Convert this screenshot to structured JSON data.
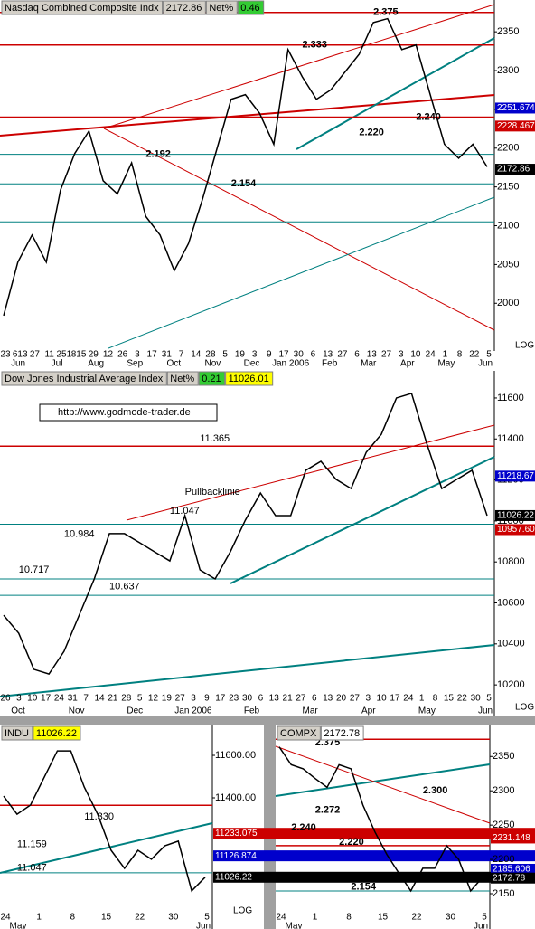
{
  "chart_data": [
    {
      "type": "line",
      "header": [
        "Nasdaq Combined Composite Indx",
        "2172.86",
        "Net%",
        "0.46"
      ],
      "header_colors": [
        "#d4d0c8",
        "#d4d0c8",
        "#d4d0c8",
        "#33cc33"
      ],
      "ylim": [
        1942,
        2391
      ],
      "yticks": [
        2000,
        2050,
        2100,
        2150,
        2200,
        2250,
        2300,
        2350
      ],
      "scale_label": "LOG",
      "color": "#000000",
      "values": [
        1984,
        2053,
        2088,
        2053,
        2146,
        2193,
        2222,
        2158,
        2141,
        2181,
        2112,
        2088,
        2042,
        2077,
        2135,
        2199,
        2263,
        2269,
        2245,
        2205,
        2327,
        2292,
        2263,
        2275,
        2298,
        2321,
        2362,
        2367,
        2327,
        2333,
        2269,
        2205,
        2187,
        2205,
        2176
      ],
      "levels": [
        {
          "value": 2375,
          "color": "#cc0000"
        },
        {
          "value": 2333,
          "color": "#cc0000"
        },
        {
          "value": 2240,
          "color": "#cc0000"
        },
        {
          "value": 2192,
          "color": "#008080"
        },
        {
          "value": 2154,
          "color": "#008080"
        },
        {
          "value": 2105,
          "color": "#008080"
        }
      ],
      "tags": [
        {
          "value": 2251.674,
          "color": "#0000cc"
        },
        {
          "value": 2228.467,
          "color": "#cc0000"
        },
        {
          "value": 2172.86,
          "color": "#000000"
        }
      ],
      "annotations": [
        {
          "text": "2.375",
          "x": 26,
          "y": 2375
        },
        {
          "text": "2.333",
          "x": 21,
          "y": 2333
        },
        {
          "text": "2.192",
          "x": 10,
          "y": 2192
        },
        {
          "text": "2.154",
          "x": 16,
          "y": 2154
        },
        {
          "text": "2.240",
          "x": 29,
          "y": 2240
        },
        {
          "text": "2.220",
          "x": 25,
          "y": 2220
        }
      ],
      "x_tick_labels": [
        "23",
        "613",
        "27",
        "11",
        "251",
        "815",
        "29",
        "12",
        "26",
        "3",
        "17",
        "31",
        "7",
        "14",
        "28",
        "5",
        "19",
        "3",
        "9",
        "17",
        "30",
        "6",
        "13",
        "27",
        "6",
        "13",
        "27",
        "3",
        "10",
        "24",
        "1",
        "8",
        "22",
        "5"
      ],
      "month_labels": [
        "Jun",
        "Jul",
        "Aug",
        "Sep",
        "Oct",
        "Nov",
        "Dec",
        "Jan 2006",
        "Feb",
        "Mar",
        "Apr",
        "May",
        "Jun"
      ]
    },
    {
      "type": "line",
      "header": [
        "Dow Jones Industrial Average Index",
        "Net%",
        "0.21",
        "11026.01"
      ],
      "header_colors": [
        "#d4d0c8",
        "#d4d0c8",
        "#33cc33",
        "#ffff00"
      ],
      "url": "http://www.godmode-trader.de",
      "ylim": [
        10077,
        11666
      ],
      "yticks": [
        10200,
        10400,
        10600,
        10800,
        11000,
        11200,
        11400,
        11600
      ],
      "scale_label": "LOG",
      "color": "#000000",
      "values": [
        10540,
        10452,
        10276,
        10253,
        10364,
        10540,
        10717,
        10938,
        10938,
        10894,
        10849,
        10805,
        11026,
        10761,
        10717,
        10849,
        11004,
        11136,
        11026,
        11026,
        11247,
        11291,
        11203,
        11158,
        11335,
        11423,
        11600,
        11622,
        11379,
        11158,
        11203,
        11247,
        11026
      ],
      "levels": [
        {
          "value": 11365,
          "color": "#cc0000"
        },
        {
          "value": 10984,
          "color": "#008080"
        },
        {
          "value": 10717,
          "color": "#008080"
        },
        {
          "value": 10637,
          "color": "#008080"
        }
      ],
      "tags": [
        {
          "value": 11218.67,
          "color": "#0000cc"
        },
        {
          "value": 11026.22,
          "color": "#000000"
        },
        {
          "value": 10957.6,
          "label": "10957.60",
          "color": "#cc0000"
        }
      ],
      "annotations": [
        {
          "text": "11.365",
          "x": 13,
          "y": 11400
        },
        {
          "text": "Pullbacklinie",
          "x": 12,
          "y": 11140
        },
        {
          "text": "11.047",
          "x": 11,
          "y": 11047
        },
        {
          "text": "10.984",
          "x": 4,
          "y": 10935
        },
        {
          "text": "10.717",
          "x": 1,
          "y": 10760
        },
        {
          "text": "10.637",
          "x": 7,
          "y": 10680
        }
      ],
      "x_tick_labels": [
        "26",
        "3",
        "10",
        "17",
        "24",
        "31",
        "7",
        "14",
        "21",
        "28",
        "5",
        "12",
        "19",
        "27",
        "3",
        "9",
        "17",
        "23",
        "30",
        "6",
        "13",
        "21",
        "27",
        "6",
        "13",
        "20",
        "27",
        "3",
        "10",
        "17",
        "24",
        "1",
        "8",
        "15",
        "22",
        "30",
        "5"
      ],
      "month_labels": [
        "Oct",
        "Nov",
        "Dec",
        "Jan 2006",
        "Feb",
        "Mar",
        "Apr",
        "May",
        "Jun"
      ]
    },
    {
      "type": "line",
      "header": [
        "INDU",
        "11026.22"
      ],
      "header_colors": [
        "#d4d0c8",
        "#ffff00"
      ],
      "ylim": [
        10855,
        11698
      ],
      "yticks": [
        {
          "value": 11400,
          "label": "11400.00"
        },
        {
          "value": 11600,
          "label": "11600.00"
        }
      ],
      "scale_label": "LOG",
      "color": "#000000",
      "values": [
        11408,
        11323,
        11366,
        11494,
        11621,
        11621,
        11451,
        11323,
        11153,
        11068,
        11153,
        11111,
        11174,
        11196,
        10962,
        11026
      ],
      "levels": [
        {
          "value": 11365,
          "color": "#cc0000"
        },
        {
          "value": 11047,
          "color": "#008080"
        }
      ],
      "tags": [
        {
          "value": 11233.075,
          "color": "#cc0000"
        },
        {
          "value": 11126.874,
          "color": "#0000cc"
        },
        {
          "value": 11026.22,
          "color": "#000000"
        }
      ],
      "annotations": [
        {
          "text": "11.330",
          "x": 6,
          "y": 11310
        },
        {
          "text": "11.159",
          "x": 1,
          "y": 11180
        },
        {
          "text": "11.047",
          "x": 1,
          "y": 11070
        }
      ],
      "x_tick_labels": [
        "24",
        "1",
        "8",
        "15",
        "22",
        "30",
        "5"
      ],
      "month_labels": [
        "May",
        "Jun"
      ]
    },
    {
      "type": "line",
      "header": [
        "COMPX",
        "2172.78"
      ],
      "header_colors": [
        "#d4d0c8",
        "#ffffff"
      ],
      "ylim": [
        2121,
        2382
      ],
      "yticks": [
        2150,
        2200,
        2250,
        2300,
        2350
      ],
      "color": "#000000",
      "values": [
        2364,
        2338,
        2332,
        2318,
        2305,
        2338,
        2332,
        2279,
        2240,
        2207,
        2180,
        2154,
        2187,
        2187,
        2220,
        2200,
        2154,
        2174
      ],
      "levels": [
        {
          "value": 2375,
          "color": "#cc0000"
        },
        {
          "value": 2240,
          "color": "#cc0000"
        },
        {
          "value": 2220,
          "color": "#cc0000"
        },
        {
          "value": 2154,
          "color": "#008080"
        }
      ],
      "tags": [
        {
          "value": 2231.148,
          "color": "#cc0000"
        },
        {
          "value": 2185.606,
          "color": "#0000cc"
        },
        {
          "value": 2172.78,
          "color": "#000000"
        }
      ],
      "annotations": [
        {
          "text": "2.375",
          "x": 3,
          "y": 2370
        },
        {
          "text": "2.300",
          "x": 12,
          "y": 2300
        },
        {
          "text": "2.272",
          "x": 3,
          "y": 2272
        },
        {
          "text": "2.240",
          "x": 1,
          "y": 2246
        },
        {
          "text": "2.220",
          "x": 5,
          "y": 2225
        },
        {
          "text": "2.154",
          "x": 6,
          "y": 2160
        }
      ],
      "x_tick_labels": [
        "24",
        "1",
        "8",
        "15",
        "22",
        "30",
        "5"
      ],
      "month_labels": [
        "May",
        "Jun"
      ]
    }
  ]
}
